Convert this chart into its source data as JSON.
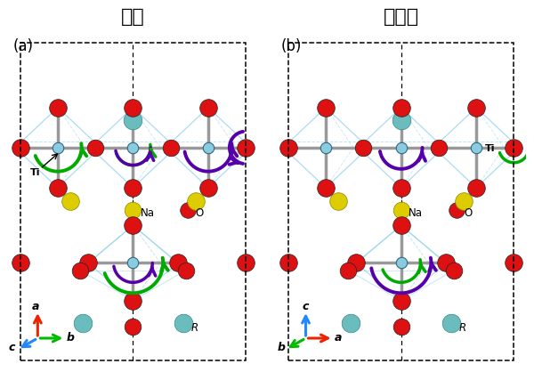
{
  "title_left": "従来",
  "title_right": "本研究",
  "panel_a_label": "(a)",
  "panel_b_label": "(b)",
  "figsize": [
    6.0,
    4.18
  ],
  "dpi": 100,
  "bg_color": "#ffffff",
  "colors": {
    "red": "#dd1111",
    "teal": "#6bbcbc",
    "yellow": "#ddcc00",
    "green": "#00aa00",
    "purple": "#5500aa",
    "gray": "#999999",
    "lightgray": "#cccccc",
    "blue_line": "#88ccee",
    "ti_color": "#88ccdd",
    "arrow_red": "#ee2200",
    "arrow_green": "#00bb00",
    "arrow_blue": "#2288ff"
  }
}
